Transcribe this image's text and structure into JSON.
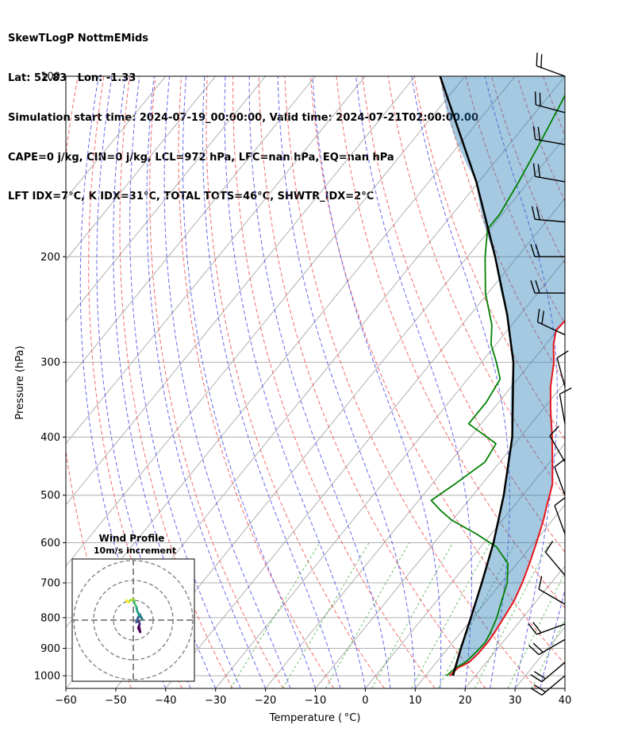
{
  "header": {
    "line1": "SkewTLogP NottmEMids",
    "line2": "Lat: 52.83   Lon: -1.33",
    "line3": "Simulation start time: 2024-07-19_00:00:00, Valid time: 2024-07-21T02:00:00.00",
    "line4": "CAPE=0 j/kg, CIN=0 j/kg, LCL=972 hPa, LFC=nan hPa, EQ=nan hPa",
    "line5": "LFT IDX=7°C, K IDX=31°C, TOTAL TOTS=46°C, SHWTR_IDX=2°C"
  },
  "chart_data": {
    "type": "line",
    "xlabel": "Temperature ( °C)",
    "ylabel": "Pressure (hPa)",
    "xlim": [
      -60,
      40
    ],
    "ylim_hpa": [
      1050,
      100
    ],
    "log_y": true,
    "x_ticks": [
      "−60",
      "−50",
      "−40",
      "−30",
      "−20",
      "−10",
      "0",
      "10",
      "20",
      "30",
      "40"
    ],
    "y_ticks": [
      "100",
      "200",
      "300",
      "400",
      "500",
      "600",
      "700",
      "800",
      "900",
      "1000"
    ],
    "y_tick_values": [
      100,
      200,
      300,
      400,
      500,
      600,
      700,
      800,
      900,
      1000
    ],
    "series": [
      {
        "color": "#e8161b",
        "points": [
          [
            1000,
            14.8
          ],
          [
            970,
            15.2
          ],
          [
            950,
            16.5
          ],
          [
            920,
            16.9
          ],
          [
            880,
            17.0
          ],
          [
            850,
            16.8
          ],
          [
            800,
            16.2
          ],
          [
            750,
            15.5
          ],
          [
            700,
            14.2
          ],
          [
            650,
            12.5
          ],
          [
            600,
            10.5
          ],
          [
            550,
            8.2
          ],
          [
            520,
            6.5
          ],
          [
            480,
            4.2
          ],
          [
            440,
            0.5
          ],
          [
            400,
            -3.6
          ],
          [
            360,
            -8.4
          ],
          [
            330,
            -12.1
          ],
          [
            300,
            -15.5
          ],
          [
            280,
            -18.5
          ],
          [
            265,
            -20.3
          ],
          [
            255,
            -20.0
          ],
          [
            240,
            -21.0
          ],
          [
            220,
            -22.5
          ],
          [
            200,
            -24.5
          ],
          [
            180,
            -27.2
          ],
          [
            160,
            -29.6
          ],
          [
            150,
            -31.0
          ],
          [
            140,
            -33.5
          ],
          [
            130,
            -36.0
          ],
          [
            120,
            -38.0
          ],
          [
            110,
            -40.0
          ],
          [
            100,
            -42.0
          ]
        ]
      },
      {
        "color": "#008000",
        "points": [
          [
            1000,
            14.2
          ],
          [
            970,
            14.7
          ],
          [
            950,
            15.8
          ],
          [
            920,
            16.2
          ],
          [
            880,
            16.5
          ],
          [
            850,
            16.0
          ],
          [
            800,
            14.8
          ],
          [
            750,
            13.0
          ],
          [
            700,
            11.2
          ],
          [
            650,
            8.2
          ],
          [
            610,
            3.2
          ],
          [
            580,
            -3.0
          ],
          [
            550,
            -10.2
          ],
          [
            530,
            -14.0
          ],
          [
            510,
            -17.5
          ],
          [
            480,
            -15.5
          ],
          [
            440,
            -13.0
          ],
          [
            410,
            -13.8
          ],
          [
            380,
            -22.5
          ],
          [
            350,
            -22.5
          ],
          [
            320,
            -23.5
          ],
          [
            300,
            -27.0
          ],
          [
            280,
            -31.0
          ],
          [
            260,
            -34.0
          ],
          [
            230,
            -40.5
          ],
          [
            200,
            -46.5
          ],
          [
            180,
            -50.5
          ],
          [
            170,
            -50.5
          ],
          [
            150,
            -52.0
          ],
          [
            130,
            -54.0
          ],
          [
            110,
            -56.5
          ],
          [
            100,
            -58.0
          ]
        ]
      },
      {
        "color": "#000000",
        "points": [
          [
            1000,
            15.5
          ],
          [
            972,
            14.7
          ],
          [
            900,
            12.6
          ],
          [
            800,
            9.6
          ],
          [
            700,
            6.1
          ],
          [
            600,
            1.9
          ],
          [
            500,
            -3.8
          ],
          [
            400,
            -11.6
          ],
          [
            300,
            -23.6
          ],
          [
            250,
            -32.6
          ],
          [
            200,
            -44.5
          ],
          [
            150,
            -60.5
          ],
          [
            100,
            -85.0
          ]
        ]
      }
    ],
    "annotations": [
      "Wind Profile",
      "10m/s increment"
    ]
  },
  "wind_barbs": [
    {
      "p": 100,
      "wdir": 290,
      "ws": 20
    },
    {
      "p": 115,
      "wdir": 285,
      "ws": 20
    },
    {
      "p": 130,
      "wdir": 280,
      "ws": 20
    },
    {
      "p": 150,
      "wdir": 280,
      "ws": 20
    },
    {
      "p": 175,
      "wdir": 275,
      "ws": 20
    },
    {
      "p": 200,
      "wdir": 270,
      "ws": 20
    },
    {
      "p": 230,
      "wdir": 270,
      "ws": 20
    },
    {
      "p": 270,
      "wdir": 295,
      "ws": 20
    },
    {
      "p": 330,
      "wdir": 345,
      "ws": 10
    },
    {
      "p": 380,
      "wdir": 350,
      "ws": 10
    },
    {
      "p": 440,
      "wdir": 330,
      "ws": 10
    },
    {
      "p": 500,
      "wdir": 340,
      "ws": 10
    },
    {
      "p": 580,
      "wdir": 340,
      "ws": 10
    },
    {
      "p": 680,
      "wdir": 320,
      "ws": 10
    },
    {
      "p": 760,
      "wdir": 300,
      "ws": 10
    },
    {
      "p": 820,
      "wdir": 250,
      "ws": 20
    },
    {
      "p": 870,
      "wdir": 240,
      "ws": 20
    },
    {
      "p": 950,
      "wdir": 230,
      "ws": 20
    },
    {
      "p": 1000,
      "wdir": 230,
      "ws": 20
    }
  ],
  "hodograph": {
    "title": "Wind Profile",
    "subtitle": "10m/s increment",
    "rings": [
      10,
      20,
      30
    ],
    "points": [
      [
        3.0,
        -3.5
      ],
      [
        3.5,
        -6.0
      ],
      [
        2.5,
        -4.0
      ],
      [
        3.2,
        -2.0
      ],
      [
        2.8,
        -0.5
      ],
      [
        1.5,
        -1.0
      ],
      [
        2.3,
        1.0
      ],
      [
        3.2,
        3.0
      ],
      [
        4.0,
        1.5
      ],
      [
        4.5,
        0.5
      ],
      [
        3.0,
        2.5
      ],
      [
        2.0,
        4.5
      ],
      [
        1.5,
        7.0
      ],
      [
        1.0,
        7.5
      ],
      [
        0.5,
        9.0
      ],
      [
        0.3,
        10.5
      ],
      [
        -1.5,
        10.0
      ],
      [
        -2.5,
        9.0
      ],
      [
        -3.0,
        9.5
      ],
      [
        -3.5,
        10.0
      ]
    ]
  }
}
